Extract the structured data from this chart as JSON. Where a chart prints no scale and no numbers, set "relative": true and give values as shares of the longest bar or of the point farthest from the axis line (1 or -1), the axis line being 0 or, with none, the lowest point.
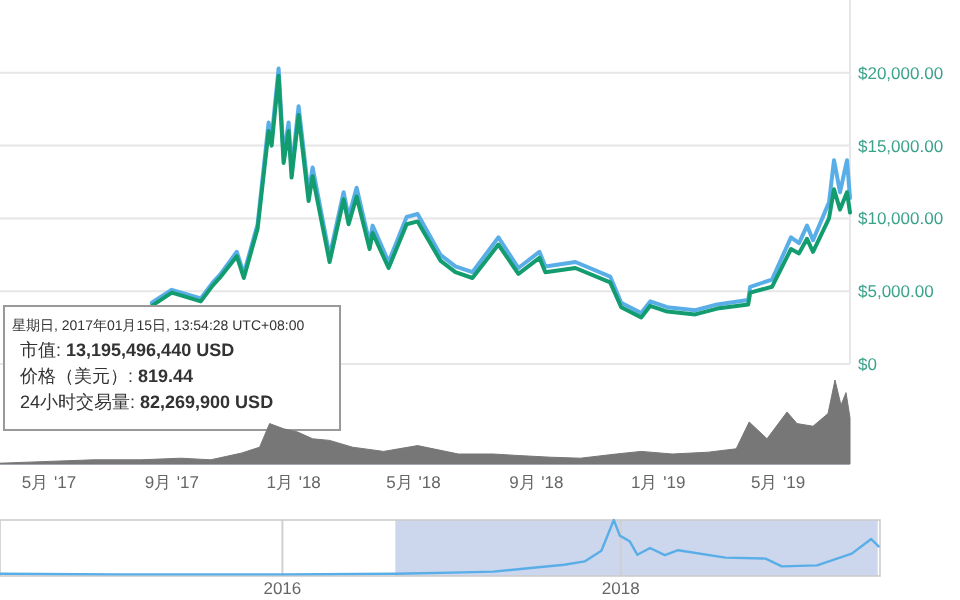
{
  "chart_data": [
    {
      "type": "line",
      "xlim": [
        "2017-03-13",
        "2019-07-12"
      ],
      "ylim": [
        0,
        25000
      ],
      "yticks": [
        {
          "value": 0,
          "label": "$0"
        },
        {
          "value": 5000,
          "label": "$5,000.00"
        },
        {
          "value": 10000,
          "label": "$10,000.00"
        },
        {
          "value": 15000,
          "label": "$15,000.00"
        },
        {
          "value": 20000,
          "label": "$20,000.00"
        }
      ],
      "tick_labels": "y",
      "grid": "y",
      "x": [
        "2017-08-12",
        "2017-09-01",
        "2017-09-30",
        "2017-10-12",
        "2017-10-20",
        "2017-11-05",
        "2017-11-12",
        "2017-11-26",
        "2017-12-07",
        "2017-12-10",
        "2017-12-17",
        "2017-12-22",
        "2017-12-27",
        "2017-12-30",
        "2018-01-06",
        "2018-01-16",
        "2018-01-20",
        "2018-02-06",
        "2018-02-20",
        "2018-02-25",
        "2018-03-05",
        "2018-03-18",
        "2018-03-21",
        "2018-04-06",
        "2018-04-24",
        "2018-05-05",
        "2018-05-28",
        "2018-06-12",
        "2018-06-29",
        "2018-07-25",
        "2018-08-14",
        "2018-09-04",
        "2018-09-10",
        "2018-10-10",
        "2018-11-14",
        "2018-11-25",
        "2018-12-15",
        "2018-12-24",
        "2019-01-10",
        "2019-02-07",
        "2019-03-01",
        "2019-04-01",
        "2019-04-03",
        "2019-04-25",
        "2019-05-14",
        "2019-05-22",
        "2019-05-30",
        "2019-06-05",
        "2019-06-21",
        "2019-06-26",
        "2019-07-02",
        "2019-07-09",
        "2019-07-12"
      ],
      "series": [
        {
          "color": "#5aaee8",
          "values": [
            4200,
            5100,
            4500,
            5600,
            6200,
            7700,
            6200,
            9600,
            16600,
            15500,
            20300,
            14300,
            16600,
            13300,
            17700,
            11700,
            13500,
            7400,
            11800,
            10100,
            12100,
            8300,
            9500,
            7000,
            10100,
            10300,
            7500,
            6700,
            6300,
            8700,
            6600,
            7700,
            6700,
            7000,
            6000,
            4200,
            3500,
            4300,
            3900,
            3700,
            4100,
            4400,
            5300,
            5800,
            8700,
            8300,
            9500,
            8500,
            11100,
            14000,
            11800,
            14000,
            11400
          ]
        },
        {
          "color": "#129c6f",
          "values": [
            4000,
            4900,
            4300,
            5400,
            6000,
            7400,
            5900,
            9300,
            16000,
            15000,
            19800,
            13800,
            16000,
            12800,
            17100,
            11200,
            12900,
            7000,
            11300,
            9600,
            11500,
            7900,
            9000,
            6600,
            9600,
            9800,
            7100,
            6300,
            5900,
            8200,
            6200,
            7300,
            6300,
            6600,
            5600,
            3900,
            3200,
            4000,
            3600,
            3400,
            3800,
            4100,
            4900,
            5300,
            7900,
            7600,
            8600,
            7700,
            10000,
            12000,
            10600,
            11800,
            10400
          ]
        }
      ],
      "annotations": [
        "星期日, 2017年01月15日, 13:54:28 UTC+08:00",
        "市值: 13,195,496,440 USD",
        "价格（美元）: 819.44",
        "24小时交易量: 82,269,900 USD"
      ]
    },
    {
      "type": "area",
      "relative": true,
      "color": "#777777",
      "xlim": [
        "2017-03-13",
        "2019-07-12"
      ],
      "xticks": [
        {
          "value": "2017-05-01",
          "label": "5月 '17"
        },
        {
          "value": "2017-09-01",
          "label": "9月 '17"
        },
        {
          "value": "2018-01-01",
          "label": "1月 '18"
        },
        {
          "value": "2018-05-01",
          "label": "5月 '18"
        },
        {
          "value": "2018-09-01",
          "label": "9月 '18"
        },
        {
          "value": "2019-01-01",
          "label": "1月 '19"
        },
        {
          "value": "2019-05-01",
          "label": "5月 '19"
        }
      ],
      "tick_labels": "x",
      "x": [
        "2017-03-13",
        "2017-05-01",
        "2017-06-15",
        "2017-08-01",
        "2017-09-10",
        "2017-10-10",
        "2017-11-10",
        "2017-11-28",
        "2017-12-08",
        "2017-12-22",
        "2018-01-05",
        "2018-01-20",
        "2018-02-06",
        "2018-03-01",
        "2018-04-01",
        "2018-05-05",
        "2018-06-15",
        "2018-07-20",
        "2018-08-15",
        "2018-09-15",
        "2018-10-15",
        "2018-11-20",
        "2018-12-15",
        "2019-01-15",
        "2019-02-20",
        "2019-03-20",
        "2019-04-02",
        "2019-04-20",
        "2019-05-10",
        "2019-05-20",
        "2019-06-05",
        "2019-06-20",
        "2019-06-27",
        "2019-07-03",
        "2019-07-08",
        "2019-07-12"
      ],
      "values": [
        0.01,
        0.03,
        0.05,
        0.05,
        0.07,
        0.05,
        0.13,
        0.2,
        0.48,
        0.42,
        0.38,
        0.3,
        0.28,
        0.2,
        0.15,
        0.22,
        0.12,
        0.12,
        0.1,
        0.08,
        0.07,
        0.12,
        0.15,
        0.12,
        0.14,
        0.18,
        0.5,
        0.3,
        0.62,
        0.48,
        0.45,
        0.6,
        1.0,
        0.7,
        0.85,
        0.55
      ]
    },
    {
      "type": "line",
      "relative": true,
      "color": "#5aaee8",
      "xlim": [
        "2014-05-01",
        "2019-07-15"
      ],
      "xticks": [
        {
          "value": "2016",
          "label": "2016"
        },
        {
          "value": "2018",
          "label": "2018"
        }
      ],
      "tick_labels": "x",
      "grid": "x",
      "bands": [
        {
          "axis": "x",
          "from": "2016-09-01",
          "to": "2019-07-10",
          "color": "#ccd6ec"
        }
      ],
      "x": [
        "2014-05-01",
        "2015-01-15",
        "2016-01-01",
        "2016-09-01",
        "2017-01-01",
        "2017-04-01",
        "2017-06-15",
        "2017-09-01",
        "2017-10-15",
        "2017-11-20",
        "2017-12-17",
        "2017-12-30",
        "2018-01-20",
        "2018-02-06",
        "2018-03-05",
        "2018-04-06",
        "2018-05-05",
        "2018-08-15",
        "2018-11-10",
        "2018-12-15",
        "2019-03-01",
        "2019-05-15",
        "2019-06-26",
        "2019-07-12"
      ],
      "values": [
        0.04,
        0.03,
        0.03,
        0.04,
        0.06,
        0.08,
        0.14,
        0.2,
        0.26,
        0.45,
        1.0,
        0.72,
        0.62,
        0.38,
        0.5,
        0.37,
        0.46,
        0.33,
        0.31,
        0.17,
        0.19,
        0.4,
        0.66,
        0.53
      ]
    }
  ]
}
